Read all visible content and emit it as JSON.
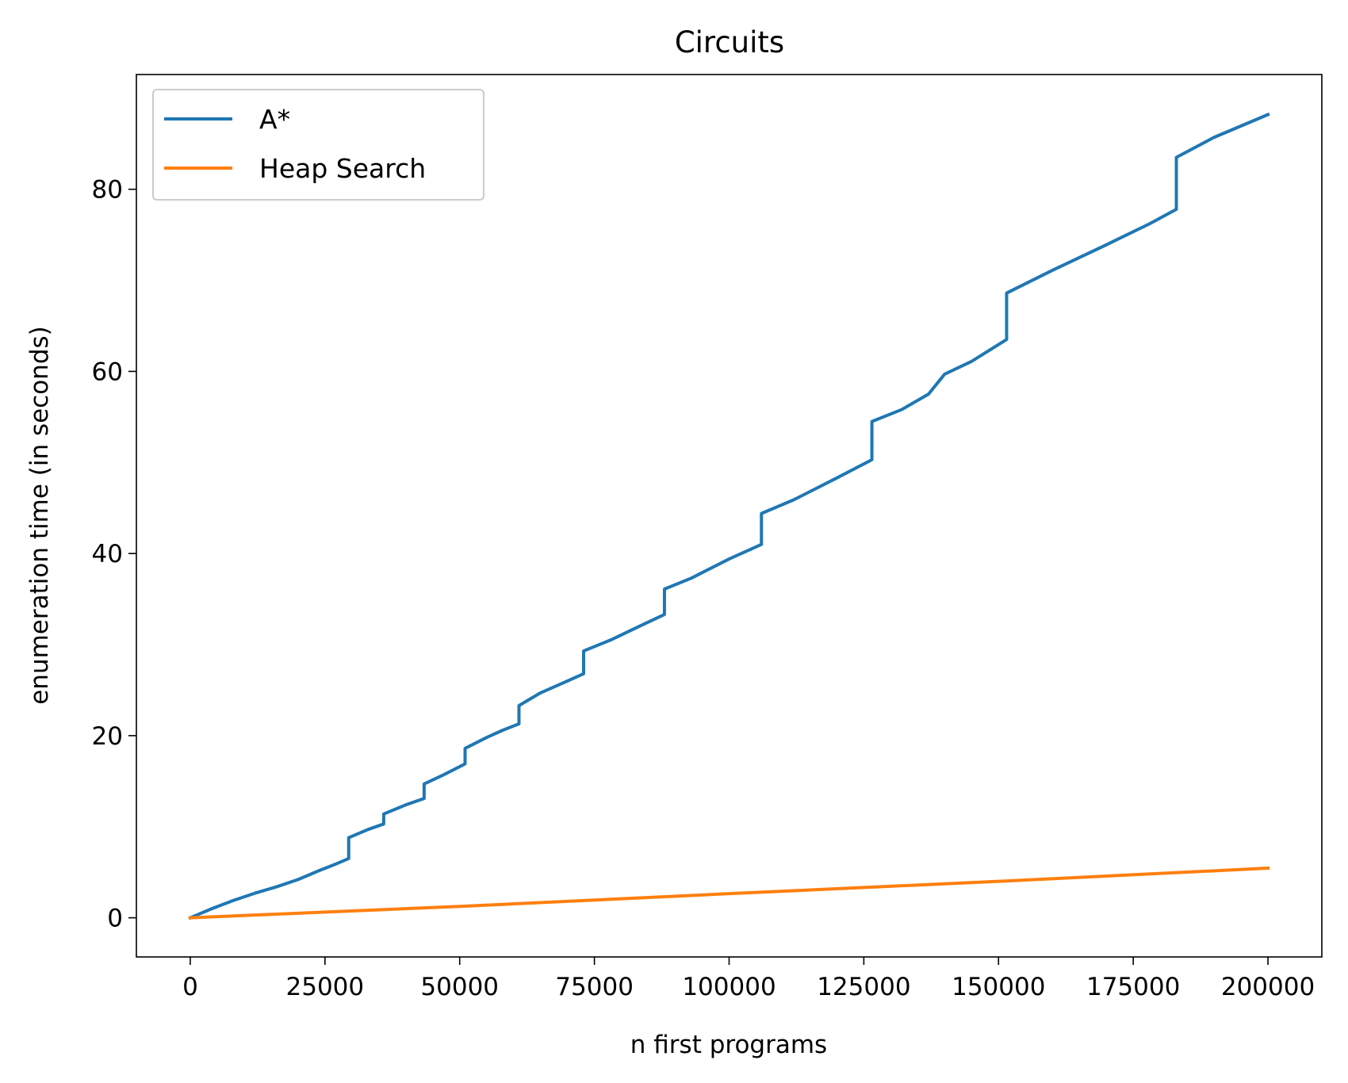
{
  "chart_data": {
    "type": "line",
    "title": "Circuits",
    "xlabel": "n first programs",
    "ylabel": "enumeration time (in seconds)",
    "xlim": [
      -10000,
      210000
    ],
    "ylim": [
      -4.3,
      92.6
    ],
    "xticks": [
      0,
      25000,
      50000,
      75000,
      100000,
      125000,
      150000,
      175000,
      200000
    ],
    "xtick_labels": [
      "0",
      "25000",
      "50000",
      "75000",
      "100000",
      "125000",
      "150000",
      "175000",
      "200000"
    ],
    "yticks": [
      0,
      20,
      40,
      60,
      80
    ],
    "ytick_labels": [
      "0",
      "20",
      "40",
      "60",
      "80"
    ],
    "grid": false,
    "legend_position": "upper-left",
    "series": [
      {
        "name": "A*",
        "color": "#1f77b4",
        "x": [
          0,
          4000,
          8000,
          12000,
          16000,
          20000,
          24000,
          27000,
          29400,
          29401,
          33000,
          35900,
          35901,
          40000,
          43400,
          43401,
          47000,
          51000,
          51001,
          55000,
          58000,
          61000,
          61001,
          65000,
          70000,
          73000,
          73001,
          78000,
          84000,
          88000,
          88001,
          93000,
          100000,
          106000,
          106001,
          112000,
          120000,
          126500,
          126501,
          132000,
          137000,
          140000,
          145000,
          151500,
          151501,
          160000,
          170000,
          178000,
          183000,
          183001,
          190000,
          200000
        ],
        "y": [
          0,
          1.0,
          1.9,
          2.7,
          3.4,
          4.2,
          5.2,
          5.9,
          6.5,
          8.8,
          9.7,
          10.3,
          11.4,
          12.4,
          13.1,
          14.7,
          15.7,
          16.9,
          18.6,
          19.8,
          20.6,
          21.3,
          23.3,
          24.7,
          26.0,
          26.8,
          29.3,
          30.5,
          32.2,
          33.3,
          36.1,
          37.3,
          39.4,
          41.0,
          44.4,
          45.9,
          48.3,
          50.3,
          54.5,
          55.8,
          57.5,
          59.7,
          61.1,
          63.5,
          68.6,
          71.1,
          73.9,
          76.2,
          77.8,
          83.5,
          85.7,
          88.2
        ]
      },
      {
        "name": "Heap Search",
        "color": "#ff7f0e",
        "x": [
          0,
          50000,
          100000,
          150000,
          200000
        ],
        "y": [
          0,
          1.25,
          2.65,
          4.0,
          5.45
        ]
      }
    ]
  }
}
